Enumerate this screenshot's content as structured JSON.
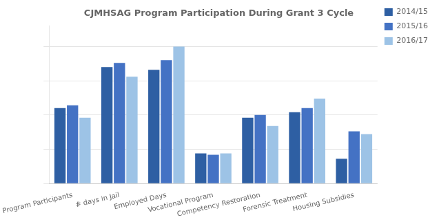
{
  "chart_data": {
    "type": "bar",
    "title": "CJMHSAG Program Participation During Grant 3 Cycle",
    "categories": [
      "Program Participants",
      "# days in Jail",
      "Employed Days",
      "Vocational Program",
      "Competency Restoration",
      "Forensic Treatment",
      "Housing Subsidies"
    ],
    "series": [
      {
        "name": "2014/15",
        "color": "#2E5FA3",
        "values": [
          55,
          85,
          83,
          22,
          48,
          52,
          18
        ]
      },
      {
        "name": "2015/16",
        "color": "#4472C4",
        "values": [
          57,
          88,
          90,
          21,
          50,
          55,
          38
        ]
      },
      {
        "name": "2016/17",
        "color": "#9DC3E6",
        "values": [
          48,
          78,
          100,
          22,
          42,
          62,
          36
        ]
      }
    ],
    "ylim": [
      0,
      115
    ],
    "yticks": [
      0,
      25,
      50,
      75,
      100
    ],
    "grid": true,
    "legend": "right",
    "tick_labels": "x"
  }
}
